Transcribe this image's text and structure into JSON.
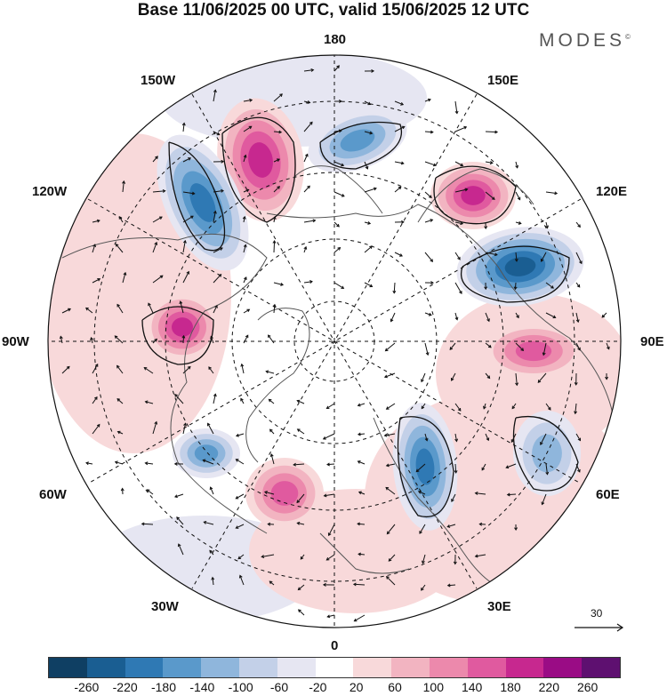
{
  "title": "Base 11/06/2025 00 UTC, valid 15/06/2025 12 UTC",
  "brand": "MODES",
  "brand_mark": "©",
  "longitude_labels": {
    "top": "180",
    "bottom": "0",
    "left": "90W",
    "right": "90E",
    "nw_upper": "150W",
    "nw_lower": "120W",
    "ne_upper": "150E",
    "ne_lower": "120E",
    "sw_upper": "60W",
    "sw_lower": "30W",
    "se_upper": "60E",
    "se_lower": "30E"
  },
  "vector_scale_label": "30",
  "colorbar": {
    "colors": [
      "#0f3f63",
      "#1a5e92",
      "#2f79b4",
      "#5a99cb",
      "#8fb6dc",
      "#c3d0e8",
      "#e6e6f2",
      "#ffffff",
      "#f8d9da",
      "#f2b4c1",
      "#ec89ac",
      "#e05a9f",
      "#c7288f",
      "#9a0c85",
      "#5e1070"
    ],
    "ticks": [
      "-260",
      "-220",
      "-180",
      "-140",
      "-100",
      "-60",
      "-20",
      "20",
      "60",
      "100",
      "140",
      "180",
      "220",
      "260"
    ]
  },
  "anomalies": [
    {
      "name": "pos-pacific-north",
      "value": 180
    },
    {
      "name": "neg-alaska-gulf",
      "value": -180
    },
    {
      "name": "neg-east-siberian",
      "value": -140
    },
    {
      "name": "pos-east-asia",
      "value": 180
    },
    {
      "name": "neg-central-asia",
      "value": -220
    },
    {
      "name": "pos-hudson",
      "value": 180
    },
    {
      "name": "pos-west-siberia",
      "value": 140
    },
    {
      "name": "neg-scandinavia",
      "value": -180
    },
    {
      "name": "neg-caspian",
      "value": -100
    },
    {
      "name": "pos-north-atlantic",
      "value": 140
    },
    {
      "name": "neg-labrador",
      "value": -140
    }
  ]
}
